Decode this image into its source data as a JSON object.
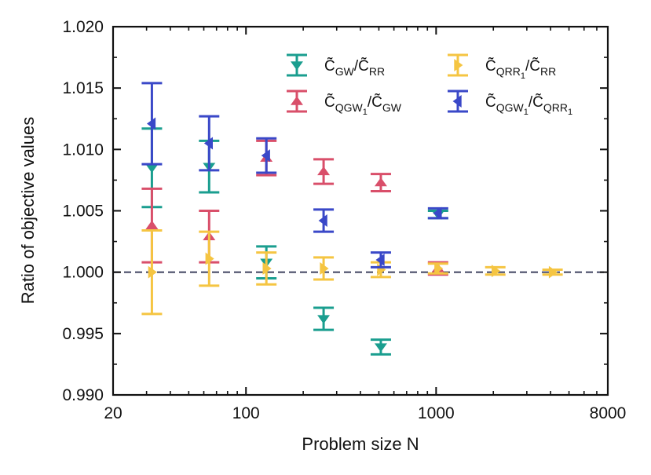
{
  "chart_data": {
    "type": "errorbar",
    "xscale": "log",
    "xlabel": "Problem size N",
    "ylabel": "Ratio of objective values",
    "xlim": [
      20,
      8000
    ],
    "ylim": [
      0.99,
      1.02
    ],
    "xticks": [
      {
        "value": 20,
        "label": "20"
      },
      {
        "value": 100,
        "label": "100"
      },
      {
        "value": 1000,
        "label": "1000"
      },
      {
        "value": 8000,
        "label": "8000"
      }
    ],
    "yticks": [
      {
        "value": 0.99,
        "label": "0.990"
      },
      {
        "value": 0.995,
        "label": "0.995"
      },
      {
        "value": 1.0,
        "label": "1.000"
      },
      {
        "value": 1.005,
        "label": "1.005"
      },
      {
        "value": 1.01,
        "label": "1.010"
      },
      {
        "value": 1.015,
        "label": "1.015"
      },
      {
        "value": 1.02,
        "label": "1.020"
      }
    ],
    "reference_line": {
      "y": 1.0,
      "style": "dashed",
      "color": "#4a4e69"
    },
    "legend": {
      "position": "top-right",
      "columns": 2
    },
    "series": [
      {
        "name": "C̃GW/C̃RR",
        "legend": {
          "base": "C̃",
          "sub": "GW",
          "mid": "/C̃",
          "sub2": "RR",
          "r1": "",
          "r2": ""
        },
        "color": "#1a9e8f",
        "marker": "tri_down",
        "points": [
          {
            "x": 32,
            "y": 1.0085,
            "err": 0.0032
          },
          {
            "x": 64,
            "y": 1.0086,
            "err": 0.0021
          },
          {
            "x": 128,
            "y": 1.0008,
            "err": 0.0013
          },
          {
            "x": 256,
            "y": 0.9962,
            "err": 0.0009
          },
          {
            "x": 512,
            "y": 0.9939,
            "err": 0.0006
          },
          {
            "x": 1024,
            "y": 1.0047,
            "err": 0.0003
          }
        ]
      },
      {
        "name": "C̃QGW1/C̃GW",
        "legend": {
          "base": "C̃",
          "sub": "QGW",
          "mid": "/C̃",
          "sub2": "GW",
          "r1": "1",
          "r2": ""
        },
        "color": "#d94f6a",
        "marker": "tri_up",
        "points": [
          {
            "x": 32,
            "y": 1.0038,
            "err": 0.003
          },
          {
            "x": 64,
            "y": 1.0029,
            "err": 0.0021
          },
          {
            "x": 128,
            "y": 1.0093,
            "err": 0.0014
          },
          {
            "x": 256,
            "y": 1.0082,
            "err": 0.001
          },
          {
            "x": 512,
            "y": 1.0073,
            "err": 0.0007
          },
          {
            "x": 1024,
            "y": 1.0003,
            "err": 0.0005
          }
        ]
      },
      {
        "name": "C̃QRR1/C̃RR",
        "legend": {
          "base": "C̃",
          "sub": "QRR",
          "mid": "/C̃",
          "sub2": "RR",
          "r1": "1",
          "r2": ""
        },
        "color": "#f5c542",
        "marker": "tri_right",
        "points": [
          {
            "x": 32,
            "y": 1.0,
            "err": 0.0034
          },
          {
            "x": 64,
            "y": 1.0011,
            "err": 0.0022
          },
          {
            "x": 128,
            "y": 1.0003,
            "err": 0.0013
          },
          {
            "x": 256,
            "y": 1.0003,
            "err": 0.0009
          },
          {
            "x": 512,
            "y": 1.0002,
            "err": 0.0006
          },
          {
            "x": 1024,
            "y": 1.0003,
            "err": 0.0004
          },
          {
            "x": 2048,
            "y": 1.0001,
            "err": 0.0003
          },
          {
            "x": 4096,
            "y": 1.0,
            "err": 0.0002
          }
        ]
      },
      {
        "name": "C̃QGW1/C̃QRR1",
        "legend": {
          "base": "C̃",
          "sub": "QGW",
          "mid": "/C̃",
          "sub2": "QRR",
          "r1": "1",
          "r2": "1"
        },
        "color": "#3a48c8",
        "marker": "tri_left",
        "points": [
          {
            "x": 32,
            "y": 1.0121,
            "err": 0.0033
          },
          {
            "x": 64,
            "y": 1.0105,
            "err": 0.0022
          },
          {
            "x": 128,
            "y": 1.0095,
            "err": 0.0014
          },
          {
            "x": 256,
            "y": 1.0042,
            "err": 0.0009
          },
          {
            "x": 512,
            "y": 1.001,
            "err": 0.0006
          },
          {
            "x": 1024,
            "y": 1.0048,
            "err": 0.0004
          }
        ]
      }
    ]
  }
}
